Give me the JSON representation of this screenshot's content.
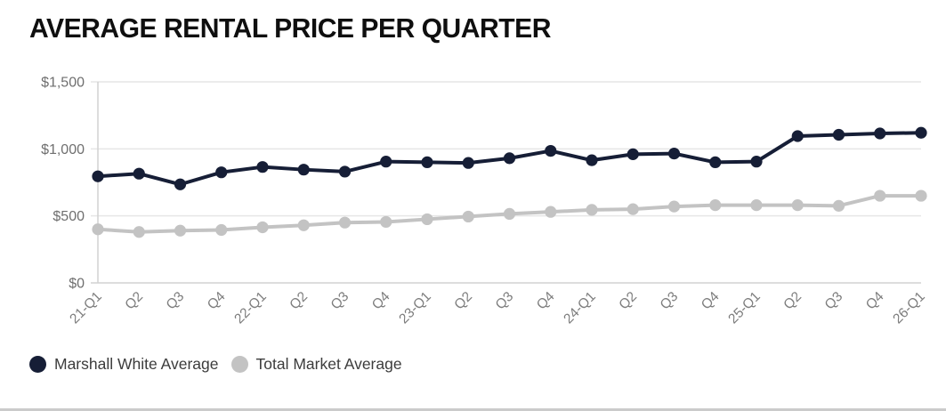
{
  "chart_data": {
    "type": "line",
    "title": "AVERAGE RENTAL PRICE PER QUARTER",
    "categories": [
      "21-Q1",
      "Q2",
      "Q3",
      "Q4",
      "22-Q1",
      "Q2",
      "Q3",
      "Q4",
      "23-Q1",
      "Q2",
      "Q3",
      "Q4",
      "24-Q1",
      "Q2",
      "Q3",
      "Q4",
      "25-Q1",
      "Q2",
      "Q3",
      "Q4",
      "26-Q1"
    ],
    "series": [
      {
        "name": "Marshall White Average",
        "color": "#161e36",
        "values": [
          795,
          815,
          735,
          825,
          865,
          845,
          830,
          905,
          900,
          895,
          930,
          985,
          915,
          960,
          965,
          900,
          905,
          1095,
          1105,
          1115,
          1120
        ]
      },
      {
        "name": "Total Market Average",
        "color": "#c3c3c3",
        "values": [
          400,
          380,
          390,
          395,
          415,
          430,
          450,
          455,
          475,
          495,
          515,
          530,
          545,
          550,
          570,
          580,
          580,
          580,
          575,
          650,
          650
        ]
      }
    ],
    "xlabel": "",
    "ylabel": "",
    "ylim": [
      0,
      1500
    ],
    "y_ticks": [
      {
        "value": 1500,
        "label": "$1,500"
      },
      {
        "value": 1000,
        "label": "$1,000"
      },
      {
        "value": 500,
        "label": "$500"
      },
      {
        "value": 0,
        "label": "$0"
      }
    ],
    "grid": "horizontal",
    "legend_position": "bottom-left"
  },
  "styles": {
    "grid_color": "#e6e6e6",
    "axis_color": "#d2d2d2",
    "y_tick_color": "#6f6f6f",
    "x_tick_color": "#7d7d7d"
  }
}
